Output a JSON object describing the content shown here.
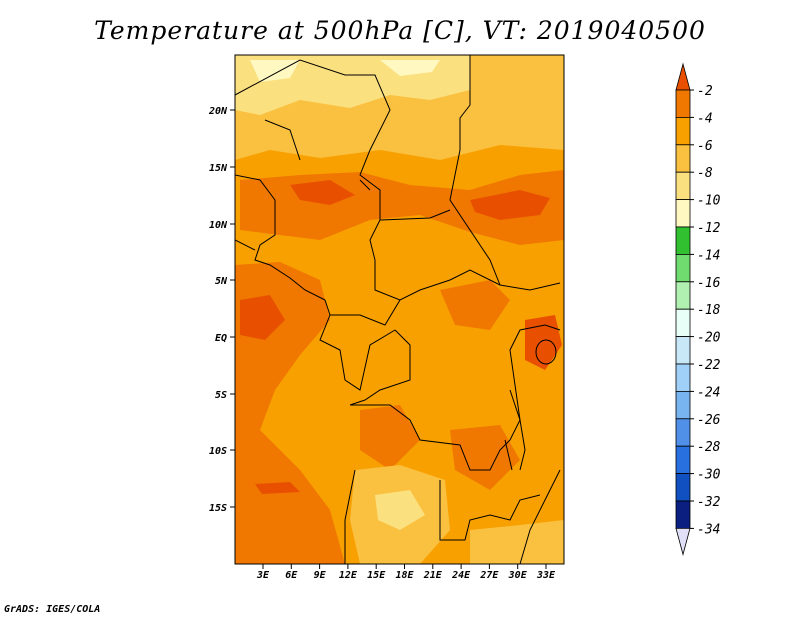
{
  "title": "Temperature at 500hPa [C], VT: 2019040500",
  "footer": "GrADS: IGES/COLA",
  "map": {
    "lat_labels": [
      "20N",
      "15N",
      "10N",
      "5N",
      "EQ",
      "5S",
      "10S",
      "15S"
    ],
    "lon_labels": [
      "3E",
      "6E",
      "9E",
      "12E",
      "15E",
      "18E",
      "21E",
      "24E",
      "27E",
      "30E",
      "33E"
    ]
  },
  "colorbar": {
    "labels": [
      "-2",
      "-4",
      "-6",
      "-8",
      "-10",
      "-12",
      "-14",
      "-16",
      "-18",
      "-20",
      "-22",
      "-24",
      "-26",
      "-28",
      "-30",
      "-32",
      "-34"
    ],
    "colors": [
      "#e85000",
      "#f07800",
      "#f8a000",
      "#fac040",
      "#fbe080",
      "#fff8c0",
      "#30c030",
      "#70dc70",
      "#b0f0b0",
      "#e8fff8",
      "#c8e8f8",
      "#a0d0f8",
      "#78b4f0",
      "#5090e8",
      "#2870e0",
      "#1050c0",
      "#0a1f80"
    ],
    "top_color": "#e85000",
    "bottom_color": "#e0e0f8"
  },
  "legend_colors": {
    "c_m2": "#e85000",
    "c_m4": "#f07800",
    "c_m6": "#f8a000",
    "c_m8": "#fac040",
    "c_m10": "#fbe080",
    "c_m12": "#fff8c0"
  }
}
